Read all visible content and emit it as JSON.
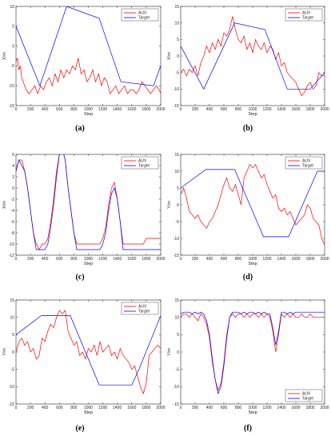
{
  "colors": {
    "auv": "#ff0000",
    "target": "#0000ff",
    "axis": "#262626",
    "grid_bg": "#ffffff"
  },
  "chart_data": [
    {
      "panel": "a",
      "caption": "(a)",
      "type": "line",
      "xlabel": "Step",
      "ylabel": "X/m",
      "xlim": [
        0,
        2000
      ],
      "ylim": [
        -15,
        10
      ],
      "xticks": [
        0,
        200,
        400,
        600,
        800,
        1000,
        1200,
        1400,
        1600,
        1800,
        2000
      ],
      "yticks": [
        -15,
        -10,
        -5,
        0,
        5,
        10
      ],
      "legend": "top-right",
      "series": [
        {
          "name": "AUV",
          "color": "#ff0000",
          "x": [
            0,
            20,
            40,
            60,
            80,
            100,
            140,
            180,
            220,
            260,
            300,
            340,
            380,
            420,
            460,
            500,
            540,
            580,
            620,
            660,
            700,
            740,
            780,
            820,
            860,
            900,
            940,
            980,
            1020,
            1060,
            1100,
            1140,
            1180,
            1220,
            1260,
            1300,
            1340,
            1380,
            1420,
            1460,
            1500,
            1540,
            1580,
            1620,
            1660,
            1700,
            1740,
            1780,
            1820,
            1860,
            1900,
            1940,
            1980,
            2000
          ],
          "y": [
            -4,
            -3,
            -6,
            -5,
            -8,
            -9,
            -11,
            -12,
            -11,
            -10,
            -12,
            -10,
            -11,
            -9,
            -8,
            -10,
            -7,
            -9,
            -6,
            -8,
            -6,
            -7,
            -5,
            -6,
            -3,
            -7,
            -6,
            -9,
            -8,
            -6,
            -9,
            -7,
            -10,
            -8,
            -9,
            -12,
            -11,
            -10,
            -12,
            -11,
            -10,
            -12,
            -11,
            -11,
            -12,
            -11,
            -9,
            -10,
            -11,
            -12,
            -11,
            -10,
            -11,
            -12
          ]
        },
        {
          "name": "Target",
          "color": "#0000ff",
          "x": [
            0,
            330,
            700,
            1150,
            1450,
            1900,
            2000
          ],
          "y": [
            5,
            -10,
            10,
            7,
            -9,
            -10,
            -5
          ]
        }
      ]
    },
    {
      "panel": "b",
      "caption": "(b)",
      "type": "line",
      "xlabel": "Step",
      "ylabel": "X/m",
      "xlim": [
        0,
        2000
      ],
      "ylim": [
        -15,
        15
      ],
      "xticks": [
        0,
        200,
        400,
        600,
        800,
        1000,
        1200,
        1400,
        1600,
        1800,
        2000
      ],
      "yticks": [
        -15,
        -10,
        -5,
        0,
        5,
        10,
        15
      ],
      "legend": "top-right",
      "series": [
        {
          "name": "AUV",
          "color": "#ff0000",
          "x": [
            0,
            40,
            80,
            120,
            160,
            200,
            240,
            280,
            320,
            360,
            400,
            440,
            480,
            520,
            560,
            600,
            640,
            680,
            720,
            760,
            800,
            840,
            880,
            920,
            960,
            1000,
            1040,
            1080,
            1120,
            1160,
            1200,
            1240,
            1280,
            1320,
            1360,
            1400,
            1440,
            1480,
            1520,
            1560,
            1600,
            1640,
            1680,
            1720,
            1760,
            1800,
            1840,
            1880,
            1920,
            1960,
            2000
          ],
          "y": [
            -5,
            -4,
            -6,
            -4,
            -5,
            -3,
            -6,
            -2,
            0,
            3,
            1,
            4,
            2,
            5,
            3,
            7,
            6,
            8,
            12,
            8,
            5,
            4,
            6,
            2,
            4,
            1,
            5,
            3,
            2,
            4,
            1,
            3,
            2,
            -1,
            1,
            -3,
            -2,
            -5,
            -6,
            -7,
            -8,
            -10,
            -12,
            -11,
            -9,
            -8,
            -10,
            -9,
            -5,
            -6,
            -6
          ]
        },
        {
          "name": "Target",
          "color": "#0000ff",
          "x": [
            0,
            320,
            750,
            1170,
            1480,
            1800,
            2000
          ],
          "y": [
            3,
            -10,
            10,
            8,
            -10,
            -10,
            -5
          ]
        }
      ]
    },
    {
      "panel": "c",
      "caption": "(c)",
      "type": "line",
      "xlabel": "Step",
      "ylabel": "X/m",
      "xlim": [
        0,
        2000
      ],
      "ylim": [
        -12,
        6
      ],
      "xticks": [
        0,
        200,
        400,
        600,
        800,
        1000,
        1200,
        1400,
        1600,
        1800,
        2000
      ],
      "yticks": [
        -12,
        -10,
        -8,
        -6,
        -4,
        -2,
        0,
        2,
        4,
        6
      ],
      "legend": "top-right",
      "series": [
        {
          "name": "AUV",
          "color": "#ff0000",
          "x": [
            0,
            40,
            80,
            120,
            160,
            200,
            240,
            280,
            320,
            360,
            400,
            440,
            480,
            520,
            560,
            600,
            640,
            680,
            720,
            760,
            800,
            840,
            880,
            920,
            960,
            1000,
            1040,
            1080,
            1120,
            1160,
            1200,
            1240,
            1280,
            1320,
            1360,
            1400,
            1440,
            1480,
            1520,
            1560,
            1600,
            1640,
            1680,
            1720,
            1760,
            1800,
            1840,
            1880,
            1920,
            1960,
            2000
          ],
          "y": [
            3,
            5,
            5,
            3,
            0,
            -4,
            -8,
            -10,
            -11,
            -10,
            -10,
            -9,
            -6,
            -2,
            3,
            6,
            7,
            5,
            0,
            -4,
            -8,
            -10,
            -10,
            -10,
            -10,
            -10,
            -10,
            -10,
            -10,
            -10,
            -9,
            -7,
            -3,
            0,
            1,
            -2,
            -6,
            -10,
            -10,
            -10,
            -10,
            -10,
            -10,
            -10,
            -10,
            -9,
            -9,
            -9,
            -9,
            -9,
            -9
          ]
        },
        {
          "name": "Target",
          "color": "#0000ff",
          "x": [
            0,
            40,
            80,
            120,
            160,
            200,
            240,
            280,
            320,
            360,
            400,
            440,
            480,
            520,
            560,
            600,
            640,
            680,
            720,
            760,
            800,
            840,
            880,
            920,
            960,
            1000,
            1040,
            1080,
            1120,
            1160,
            1200,
            1240,
            1280,
            1320,
            1360,
            1400,
            1440,
            1480,
            1520,
            1560,
            1600,
            1640,
            1680,
            1720,
            1760,
            1800,
            1840,
            1880,
            1920,
            1960,
            2000
          ],
          "y": [
            3,
            5,
            4,
            3,
            0,
            -4,
            -8,
            -11,
            -11,
            -11,
            -11,
            -10,
            -7,
            -3,
            2,
            6,
            7,
            5,
            0,
            -4,
            -8,
            -11,
            -11,
            -11,
            -11,
            -11,
            -11,
            -11,
            -11,
            -11,
            -10,
            -8,
            -4,
            -1,
            0,
            -2,
            -6,
            -11,
            -11,
            -11,
            -11,
            -11,
            -11,
            -11,
            -11,
            -11,
            -11,
            -11,
            -11,
            -11,
            -11
          ]
        }
      ]
    },
    {
      "panel": "d",
      "caption": "(d)",
      "type": "line",
      "xlabel": "Step",
      "ylabel": "Y/m",
      "xlim": [
        0,
        2000
      ],
      "ylim": [
        -15,
        15
      ],
      "xticks": [
        0,
        200,
        400,
        600,
        800,
        1000,
        1200,
        1400,
        1600,
        1800,
        2000
      ],
      "yticks": [
        -15,
        -10,
        -5,
        0,
        5,
        10,
        15
      ],
      "legend": "top-right",
      "series": [
        {
          "name": "AUV",
          "color": "#ff0000",
          "x": [
            0,
            40,
            80,
            120,
            160,
            200,
            240,
            280,
            320,
            360,
            400,
            440,
            480,
            520,
            560,
            600,
            640,
            680,
            720,
            760,
            800,
            840,
            880,
            920,
            960,
            1000,
            1040,
            1080,
            1120,
            1160,
            1200,
            1240,
            1280,
            1320,
            1360,
            1400,
            1440,
            1480,
            1520,
            1560,
            1600,
            1640,
            1680,
            1720,
            1760,
            1800,
            1840,
            1880,
            1920,
            1960,
            2000
          ],
          "y": [
            3,
            5,
            2,
            -2,
            -3,
            -4,
            -3,
            -5,
            -6,
            -7,
            -5,
            -4,
            -2,
            0,
            3,
            6,
            8,
            5,
            4,
            6,
            3,
            0,
            8,
            10,
            12,
            11,
            12,
            10,
            8,
            9,
            6,
            4,
            2,
            3,
            -1,
            -2,
            -1,
            -3,
            -2,
            -4,
            -6,
            -5,
            -4,
            -3,
            0,
            -1,
            -4,
            -5,
            -6,
            -10,
            -12
          ]
        },
        {
          "name": "Target",
          "color": "#0000ff",
          "x": [
            0,
            350,
            750,
            1150,
            1500,
            1900,
            2000
          ],
          "y": [
            5,
            10.5,
            10.5,
            -9.5,
            -9.5,
            10,
            10
          ]
        }
      ]
    },
    {
      "panel": "e",
      "caption": "(e)",
      "type": "line",
      "xlabel": "Step",
      "ylabel": "Y/m",
      "xlim": [
        0,
        2000
      ],
      "ylim": [
        -15,
        15
      ],
      "xticks": [
        0,
        200,
        400,
        600,
        800,
        1000,
        1200,
        1400,
        1600,
        1800,
        2000
      ],
      "yticks": [
        -15,
        -10,
        -5,
        0,
        5,
        10,
        15
      ],
      "legend": "top-right",
      "series": [
        {
          "name": "AUV",
          "color": "#ff0000",
          "x": [
            0,
            40,
            80,
            120,
            160,
            200,
            240,
            280,
            320,
            360,
            400,
            440,
            480,
            520,
            560,
            600,
            640,
            680,
            720,
            760,
            800,
            840,
            880,
            920,
            960,
            1000,
            1040,
            1080,
            1120,
            1160,
            1200,
            1240,
            1280,
            1320,
            1360,
            1400,
            1440,
            1480,
            1520,
            1560,
            1600,
            1640,
            1680,
            1720,
            1760,
            1800,
            1840,
            1880,
            1920,
            1960,
            2000
          ],
          "y": [
            0,
            3,
            4,
            2,
            3,
            0,
            1,
            -2,
            -1,
            4,
            3,
            6,
            8,
            7,
            10,
            12,
            11,
            12,
            6,
            4,
            2,
            3,
            -1,
            0,
            -2,
            1,
            0,
            2,
            -1,
            3,
            0,
            1,
            2,
            -1,
            0,
            -2,
            1,
            -1,
            -2,
            -3,
            -5,
            -4,
            -7,
            -10,
            -12,
            -9,
            -1,
            0,
            1,
            2,
            1
          ]
        },
        {
          "name": "Target",
          "color": "#0000ff",
          "x": [
            0,
            350,
            750,
            1150,
            1500,
            1600,
            1700,
            2000
          ],
          "y": [
            5,
            10.5,
            10.5,
            -9.5,
            -9.5,
            -9.5,
            -5,
            10.5
          ]
        }
      ]
    },
    {
      "panel": "f",
      "caption": "(f)",
      "type": "line",
      "xlabel": "Step",
      "ylabel": "Y/m",
      "xlim": [
        0,
        2000
      ],
      "ylim": [
        -15,
        15
      ],
      "xticks": [
        0,
        200,
        400,
        600,
        800,
        1000,
        1200,
        1400,
        1600,
        1800,
        2000
      ],
      "yticks": [
        -15,
        -10,
        -5,
        0,
        5,
        10,
        15
      ],
      "legend": "bottom-right",
      "series": [
        {
          "name": "AUV",
          "color": "#ff0000",
          "x": [
            0,
            40,
            80,
            120,
            160,
            200,
            240,
            280,
            320,
            360,
            400,
            440,
            480,
            520,
            560,
            600,
            640,
            680,
            720,
            760,
            800,
            840,
            880,
            920,
            960,
            1000,
            1040,
            1080,
            1120,
            1160,
            1200,
            1240,
            1280,
            1320,
            1360,
            1400,
            1440,
            1480,
            1520,
            1560,
            1600,
            1640,
            1680,
            1720,
            1760,
            1800,
            1840,
            1880,
            1920,
            1960,
            2000
          ],
          "y": [
            10,
            11,
            11,
            10,
            11,
            10,
            9,
            11,
            10,
            8,
            4,
            -3,
            -8,
            -11,
            -9,
            -3,
            5,
            10,
            11,
            10,
            11,
            11,
            10,
            11,
            10,
            11,
            11,
            10,
            11,
            10,
            11,
            10,
            6,
            0,
            5,
            11,
            10,
            11,
            10,
            11,
            10,
            10,
            11,
            10,
            10,
            11,
            10,
            10,
            10,
            10,
            10
          ]
        },
        {
          "name": "Target",
          "color": "#0000ff",
          "x": [
            0,
            40,
            80,
            120,
            160,
            200,
            240,
            280,
            320,
            360,
            400,
            440,
            480,
            520,
            560,
            600,
            640,
            680,
            720,
            760,
            800,
            840,
            880,
            920,
            960,
            1000,
            1040,
            1080,
            1120,
            1160,
            1200,
            1240,
            1280,
            1320,
            1360,
            1400,
            1440,
            1480,
            1520,
            1560,
            1600,
            1640,
            1680,
            1720,
            1760,
            1800,
            1840,
            1880,
            1920,
            1960,
            2000
          ],
          "y": [
            11,
            11.5,
            11.5,
            11.5,
            11,
            11.5,
            11,
            11.5,
            11,
            9,
            5,
            -2,
            -8,
            -12,
            -10,
            -4,
            4,
            10,
            11.5,
            11.5,
            11.5,
            11,
            11.5,
            11,
            11.5,
            11.5,
            11,
            11.5,
            11,
            11.5,
            11,
            11,
            7,
            2,
            6,
            11.5,
            11.5,
            11,
            11.5,
            11,
            11.5,
            11.5,
            11.5,
            11.5,
            11.5,
            11.5,
            11.5,
            11.5,
            11.5,
            11.5,
            11.5
          ]
        }
      ]
    }
  ]
}
